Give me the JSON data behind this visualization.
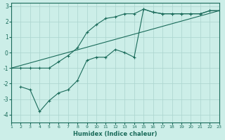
{
  "xlabel": "Humidex (Indice chaleur)",
  "bg_color": "#cceee8",
  "grid_color": "#aad4ce",
  "line_color": "#1a6b5a",
  "xlim": [
    1,
    23
  ],
  "ylim": [
    -4.5,
    3.2
  ],
  "xticks": [
    1,
    2,
    3,
    4,
    5,
    6,
    7,
    8,
    9,
    10,
    11,
    12,
    13,
    14,
    15,
    16,
    17,
    18,
    19,
    20,
    21,
    22,
    23
  ],
  "yticks": [
    -4,
    -3,
    -2,
    -1,
    0,
    1,
    2,
    3
  ],
  "line1_x": [
    1,
    2,
    3,
    4,
    5,
    6,
    7,
    8,
    9,
    10,
    11,
    12,
    13,
    14,
    15,
    16,
    17,
    18,
    19,
    20,
    21,
    22,
    23
  ],
  "line1_y": [
    -1,
    -1,
    -1,
    -1,
    -1,
    -0.6,
    -0.2,
    0.3,
    1.3,
    1.8,
    2.2,
    2.3,
    2.5,
    2.5,
    2.8,
    2.6,
    2.5,
    2.5,
    2.5,
    2.5,
    2.5,
    2.7,
    2.7
  ],
  "line2_x": [
    2,
    3,
    4,
    5,
    6,
    7,
    8,
    9,
    10,
    11,
    12,
    13,
    14,
    15,
    16,
    17,
    18,
    19,
    20,
    21,
    22,
    23
  ],
  "line2_y": [
    -2.2,
    -2.4,
    -3.8,
    -3.1,
    -2.6,
    -2.4,
    -1.8,
    -0.5,
    -0.3,
    -0.3,
    0.2,
    0.0,
    -0.3,
    2.8,
    2.6,
    2.5,
    2.5,
    2.5,
    2.5,
    2.5,
    2.7,
    2.7
  ],
  "line3_x": [
    1,
    23
  ],
  "line3_y": [
    -1.0,
    2.7
  ]
}
